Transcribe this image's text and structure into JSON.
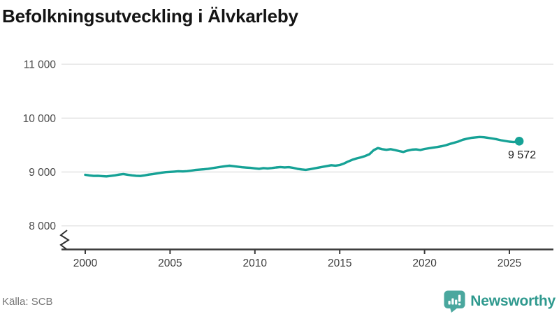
{
  "title": "Befolkningsutveckling i Älvkarleby",
  "footer": {
    "source": "Källa: SCB",
    "logo_text": "Newsworthy"
  },
  "chart_data": {
    "type": "line",
    "title": "Befolkningsutveckling i Älvkarleby",
    "xlabel": "",
    "ylabel": "",
    "grid": "horizontal",
    "axis_break": true,
    "legend_position": "none",
    "line_color": "#16a296",
    "grid_color": "#e3e3e3",
    "axis_color": "#3c3c3c",
    "ylim": [
      7800,
      11300
    ],
    "xlim": [
      1999.3,
      2027.5
    ],
    "x_ticks": [
      2000,
      2005,
      2010,
      2015,
      2020,
      2025
    ],
    "y_ticks": [
      {
        "value": 8000,
        "label": "8 000"
      },
      {
        "value": 9000,
        "label": "9 000"
      },
      {
        "value": 10000,
        "label": "10 000"
      },
      {
        "value": 11000,
        "label": "11 000"
      }
    ],
    "end_label": "9 572",
    "end_value": 9572,
    "series": [
      {
        "name": "Folkmängd",
        "x": [
          2000,
          2000.25,
          2000.5,
          2000.75,
          2001,
          2001.25,
          2001.5,
          2001.75,
          2002,
          2002.25,
          2002.5,
          2002.75,
          2003,
          2003.25,
          2003.5,
          2003.75,
          2004,
          2004.25,
          2004.5,
          2004.75,
          2005,
          2005.25,
          2005.5,
          2005.75,
          2006,
          2006.25,
          2006.5,
          2006.75,
          2007,
          2007.25,
          2007.5,
          2007.75,
          2008,
          2008.25,
          2008.5,
          2008.75,
          2009,
          2009.25,
          2009.5,
          2009.75,
          2010,
          2010.25,
          2010.5,
          2010.75,
          2011,
          2011.25,
          2011.5,
          2011.75,
          2012,
          2012.25,
          2012.5,
          2012.75,
          2013,
          2013.25,
          2013.5,
          2013.75,
          2014,
          2014.25,
          2014.5,
          2014.75,
          2015,
          2015.25,
          2015.5,
          2015.75,
          2016,
          2016.25,
          2016.5,
          2016.75,
          2017,
          2017.25,
          2017.5,
          2017.75,
          2018,
          2018.25,
          2018.5,
          2018.75,
          2019,
          2019.25,
          2019.5,
          2019.75,
          2020,
          2020.25,
          2020.5,
          2020.75,
          2021,
          2021.25,
          2021.5,
          2021.75,
          2022,
          2022.25,
          2022.5,
          2022.75,
          2023,
          2023.25,
          2023.5,
          2023.75,
          2024,
          2024.25,
          2024.5,
          2024.75,
          2025,
          2025.25,
          2025.58
        ],
        "values": [
          8948,
          8936,
          8928,
          8930,
          8924,
          8918,
          8928,
          8938,
          8952,
          8962,
          8950,
          8938,
          8930,
          8926,
          8938,
          8952,
          8962,
          8975,
          8988,
          8998,
          9002,
          9008,
          9014,
          9010,
          9016,
          9026,
          9038,
          9044,
          9050,
          9060,
          9072,
          9084,
          9096,
          9108,
          9116,
          9108,
          9098,
          9088,
          9082,
          9076,
          9068,
          9060,
          9072,
          9066,
          9074,
          9084,
          9092,
          9086,
          9090,
          9078,
          9060,
          9048,
          9040,
          9052,
          9068,
          9082,
          9096,
          9112,
          9126,
          9118,
          9130,
          9158,
          9196,
          9228,
          9252,
          9272,
          9296,
          9330,
          9406,
          9444,
          9424,
          9412,
          9424,
          9408,
          9388,
          9372,
          9398,
          9414,
          9420,
          9408,
          9428,
          9440,
          9452,
          9464,
          9478,
          9498,
          9522,
          9544,
          9568,
          9598,
          9618,
          9634,
          9642,
          9650,
          9645,
          9634,
          9622,
          9608,
          9590,
          9576,
          9564,
          9556,
          9572
        ]
      }
    ]
  }
}
